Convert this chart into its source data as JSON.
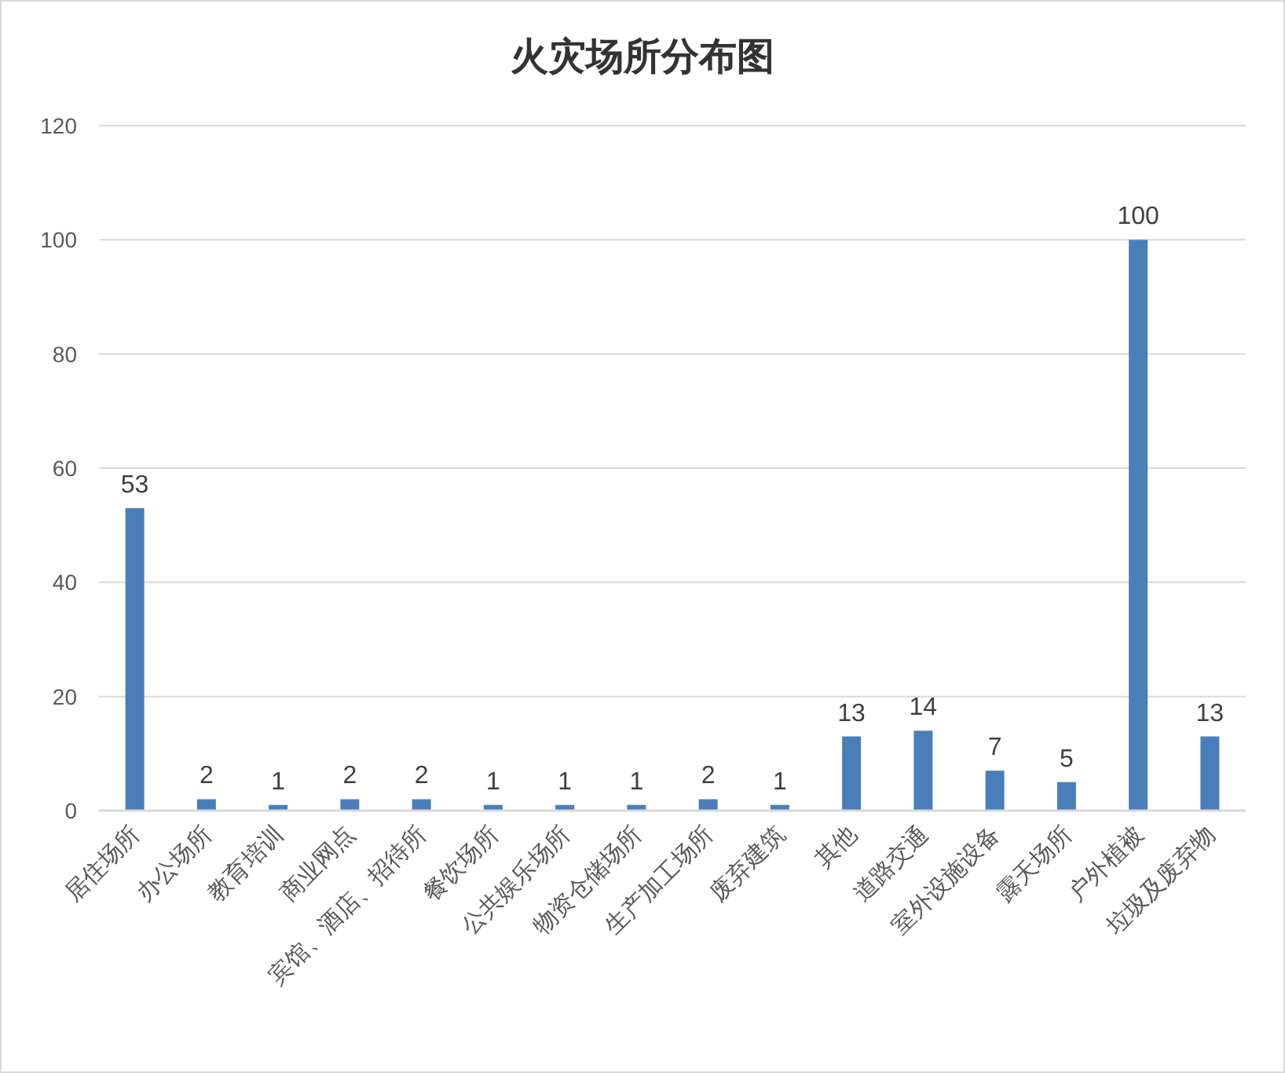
{
  "chart_data": {
    "type": "bar",
    "title": "火灾场所分布图",
    "categories": [
      "居住场所",
      "办公场所",
      "教育培训",
      "商业网点",
      "宾馆、酒店、招待所",
      "餐饮场所",
      "公共娱乐场所",
      "物资仓储场所",
      "生产加工场所",
      "废弃建筑",
      "其他",
      "道路交通",
      "室外设施设备",
      "露天场所",
      "户外植被",
      "垃圾及废弃物"
    ],
    "values": [
      53,
      2,
      1,
      2,
      2,
      1,
      1,
      1,
      2,
      1,
      13,
      14,
      7,
      5,
      100,
      13
    ],
    "color": "#4a7ebb",
    "ylim": [
      0,
      120
    ],
    "yticks": [
      0,
      20,
      40,
      60,
      80,
      100,
      120
    ],
    "grid": "y",
    "data_labels": true
  }
}
